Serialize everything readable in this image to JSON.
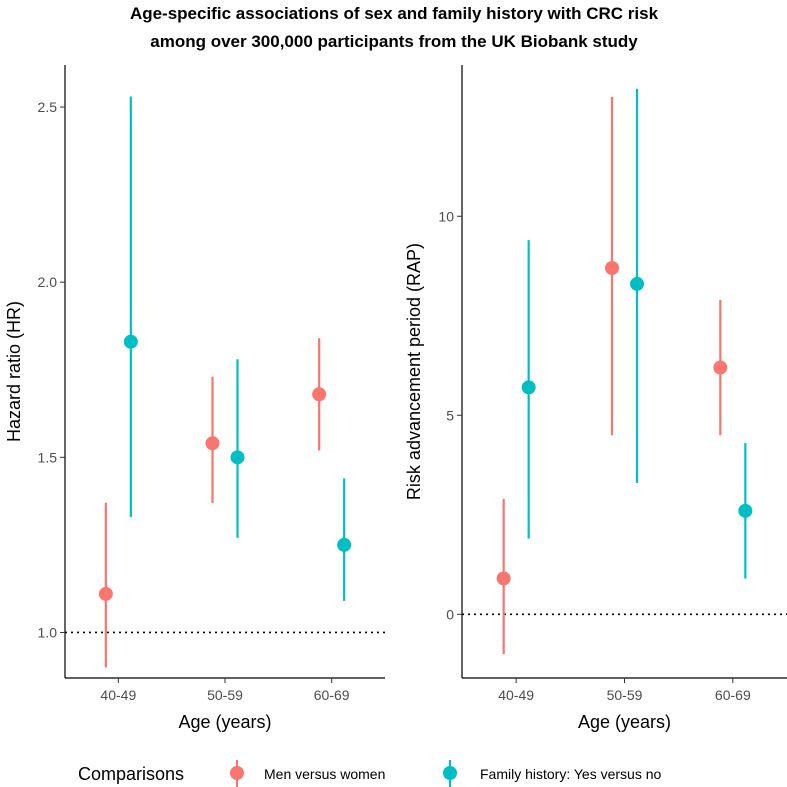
{
  "title_line1": "Age-specific associations of sex and family history with CRC risk",
  "title_line2": "among over 300,000 participants from the UK Biobank study",
  "chart_data": [
    {
      "type": "scatter",
      "subtype": "point-range",
      "categories": [
        "40-49",
        "50-59",
        "60-69"
      ],
      "xlabel": "Age (years)",
      "ylabel": "Hazard ratio (HR)",
      "ylim": [
        0.87,
        2.62
      ],
      "yticks": [
        1.0,
        1.5,
        2.0,
        2.5
      ],
      "ytick_labels": [
        "1.0",
        "1.5",
        "2.0",
        "2.5"
      ],
      "reference_line": 1.0,
      "reference_style": "dotted",
      "series": [
        {
          "name": "Men versus women",
          "color": "#F8766D",
          "estimate": [
            1.11,
            1.54,
            1.68
          ],
          "lower": [
            0.9,
            1.37,
            1.52
          ],
          "upper": [
            1.37,
            1.73,
            1.84
          ]
        },
        {
          "name": "Family history: Yes versus no",
          "color": "#00BFC4",
          "estimate": [
            1.83,
            1.5,
            1.25
          ],
          "lower": [
            1.33,
            1.27,
            1.09
          ],
          "upper": [
            2.53,
            1.78,
            1.44
          ]
        }
      ]
    },
    {
      "type": "scatter",
      "subtype": "point-range",
      "categories": [
        "40-49",
        "50-59",
        "60-69"
      ],
      "xlabel": "Age (years)",
      "ylabel": "Risk advancement period (RAP)",
      "ylim": [
        -1.6,
        13.8
      ],
      "yticks": [
        0,
        5,
        10
      ],
      "ytick_labels": [
        "0",
        "5",
        "10"
      ],
      "reference_line": 0,
      "reference_style": "dotted",
      "series": [
        {
          "name": "Men versus women",
          "color": "#F8766D",
          "estimate": [
            0.9,
            8.7,
            6.2
          ],
          "lower": [
            -1.0,
            4.5,
            4.5
          ],
          "upper": [
            2.9,
            13.0,
            7.9
          ]
        },
        {
          "name": "Family history: Yes versus no",
          "color": "#00BFC4",
          "estimate": [
            5.7,
            8.3,
            2.6
          ],
          "lower": [
            1.9,
            3.3,
            0.9
          ],
          "upper": [
            9.4,
            13.2,
            4.3
          ]
        }
      ]
    }
  ],
  "legend": {
    "title": "Comparisons",
    "position": "bottom",
    "items": [
      {
        "label": "Men versus women",
        "color": "#F8766D"
      },
      {
        "label": "Family history: Yes versus no",
        "color": "#00BFC4"
      }
    ]
  }
}
